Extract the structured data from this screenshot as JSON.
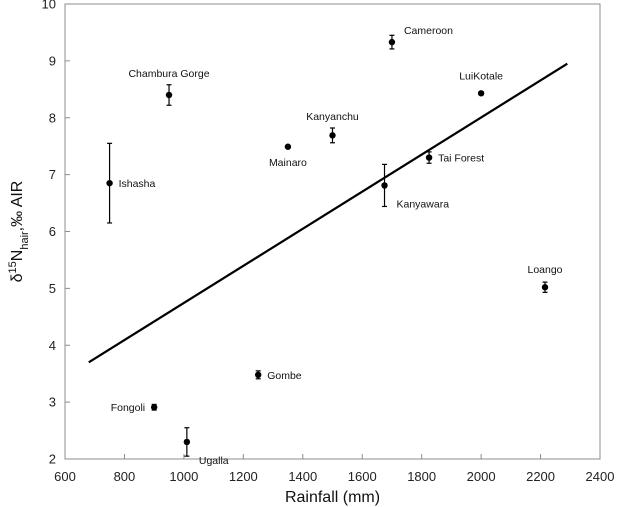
{
  "chart_data": {
    "type": "scatter",
    "xlabel": "Rainfall (mm)",
    "ylabel": {
      "prefix": "δ",
      "sup": "15",
      "main": "N",
      "sub": "hair",
      "suffix": ",‰ AIR"
    },
    "xlim": [
      600,
      2400
    ],
    "ylim": [
      2,
      10
    ],
    "x_ticks": [
      "600",
      "800",
      "1000",
      "1200",
      "1400",
      "1600",
      "1800",
      "2000",
      "2200",
      "2400"
    ],
    "y_ticks": [
      "2",
      "3",
      "4",
      "5",
      "6",
      "7",
      "8",
      "9",
      "10"
    ],
    "grid": false,
    "points": [
      {
        "label": "Cameroon",
        "x": 1700,
        "y": 9.33,
        "err": 0.12,
        "label_pos": "upper-right"
      },
      {
        "label": "Chambura Gorge",
        "x": 950,
        "y": 8.4,
        "err": 0.18,
        "label_pos": "above"
      },
      {
        "label": "LuiKotale",
        "x": 2000,
        "y": 8.43,
        "err": 0.03,
        "label_pos": "above"
      },
      {
        "label": "Kanyanchu",
        "x": 1500,
        "y": 7.69,
        "err": 0.13,
        "label_pos": "above"
      },
      {
        "label": "Mainaro",
        "x": 1350,
        "y": 7.49,
        "err": 0,
        "label_pos": "below"
      },
      {
        "label": "Ishasha",
        "x": 750,
        "y": 6.85,
        "err": 0.7,
        "label_pos": "right"
      },
      {
        "label": "Tai Forest",
        "x": 1825,
        "y": 7.3,
        "err": 0.1,
        "label_pos": "right"
      },
      {
        "label": "Kanyawara",
        "x": 1675,
        "y": 6.81,
        "err": 0.37,
        "label_pos": "lower-right"
      },
      {
        "label": "Loango",
        "x": 2215,
        "y": 5.02,
        "err": 0.09,
        "label_pos": "above"
      },
      {
        "label": "Gombe",
        "x": 1250,
        "y": 3.48,
        "err": 0.07,
        "label_pos": "right"
      },
      {
        "label": "Fongoli",
        "x": 900,
        "y": 2.91,
        "err": 0.05,
        "label_pos": "left"
      },
      {
        "label": "Ugalla",
        "x": 1010,
        "y": 2.3,
        "err": 0.25,
        "label_pos": "lower-right"
      }
    ],
    "trendline": {
      "x": [
        680,
        2290
      ],
      "y": [
        3.7,
        8.95
      ]
    },
    "colors": {
      "marker": "#000000",
      "line": "#000000",
      "frame": "#8c8c8c"
    }
  }
}
